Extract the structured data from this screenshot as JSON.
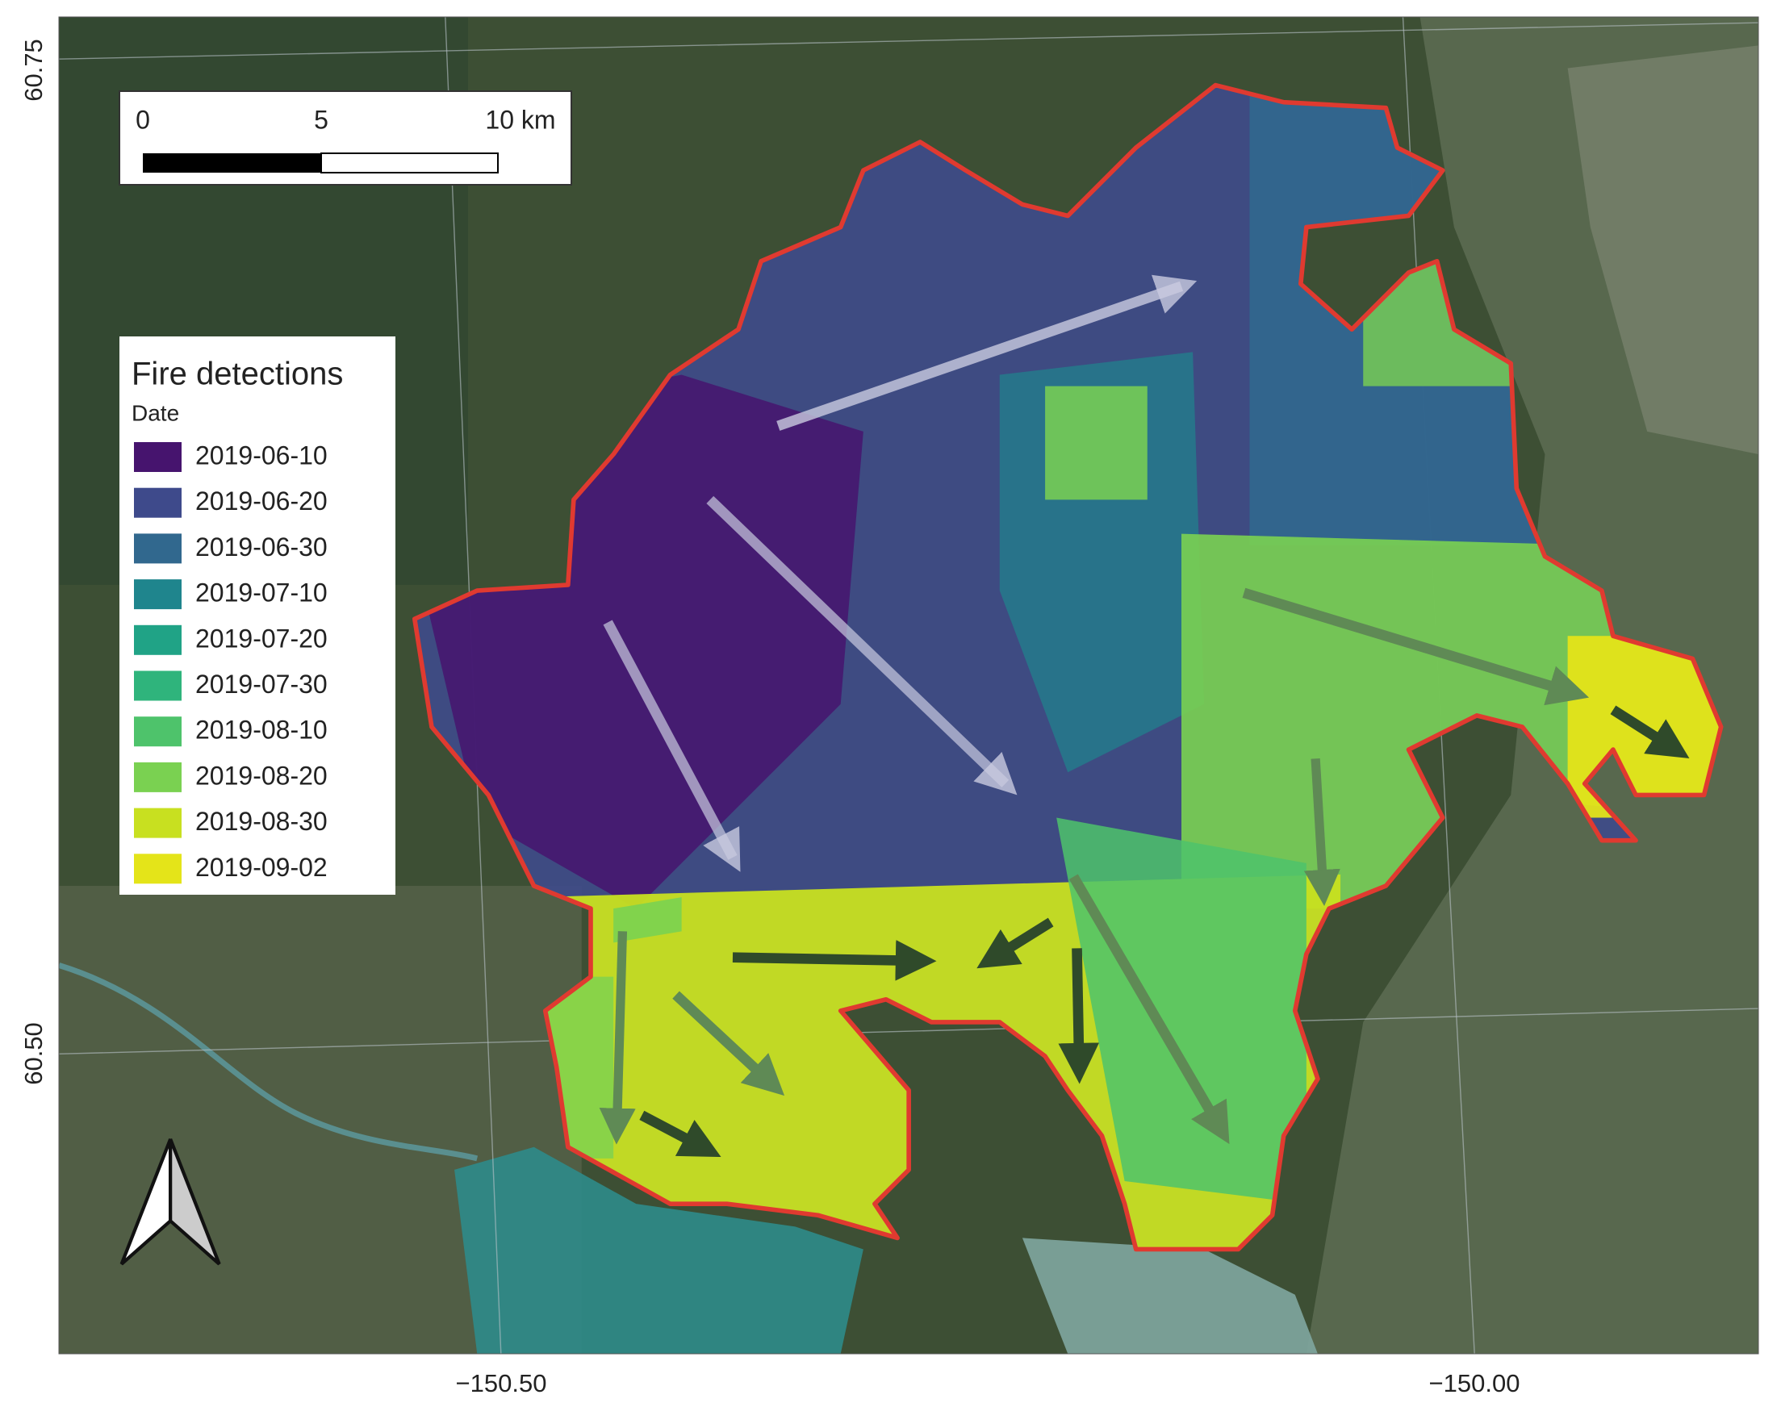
{
  "map": {
    "lat_labels": [
      "60.75",
      "60.50"
    ],
    "lon_labels": [
      "−150.50",
      "−150.00"
    ],
    "scale_bar": {
      "labels": [
        "0",
        "5",
        "10 km"
      ]
    },
    "legend": {
      "title": "Fire detections",
      "subtitle": "Date",
      "entries": [
        {
          "label": "2019-06-10",
          "color": "#46146e"
        },
        {
          "label": "2019-06-20",
          "color": "#3e4a8b"
        },
        {
          "label": "2019-06-30",
          "color": "#31688e"
        },
        {
          "label": "2019-07-10",
          "color": "#1f858d"
        },
        {
          "label": "2019-07-20",
          "color": "#20a386"
        },
        {
          "label": "2019-07-30",
          "color": "#2fb47c"
        },
        {
          "label": "2019-08-10",
          "color": "#4ec36b"
        },
        {
          "label": "2019-08-20",
          "color": "#7ad151"
        },
        {
          "label": "2019-08-30",
          "color": "#c8e020"
        },
        {
          "label": "2019-09-02",
          "color": "#e4e419"
        }
      ]
    }
  }
}
